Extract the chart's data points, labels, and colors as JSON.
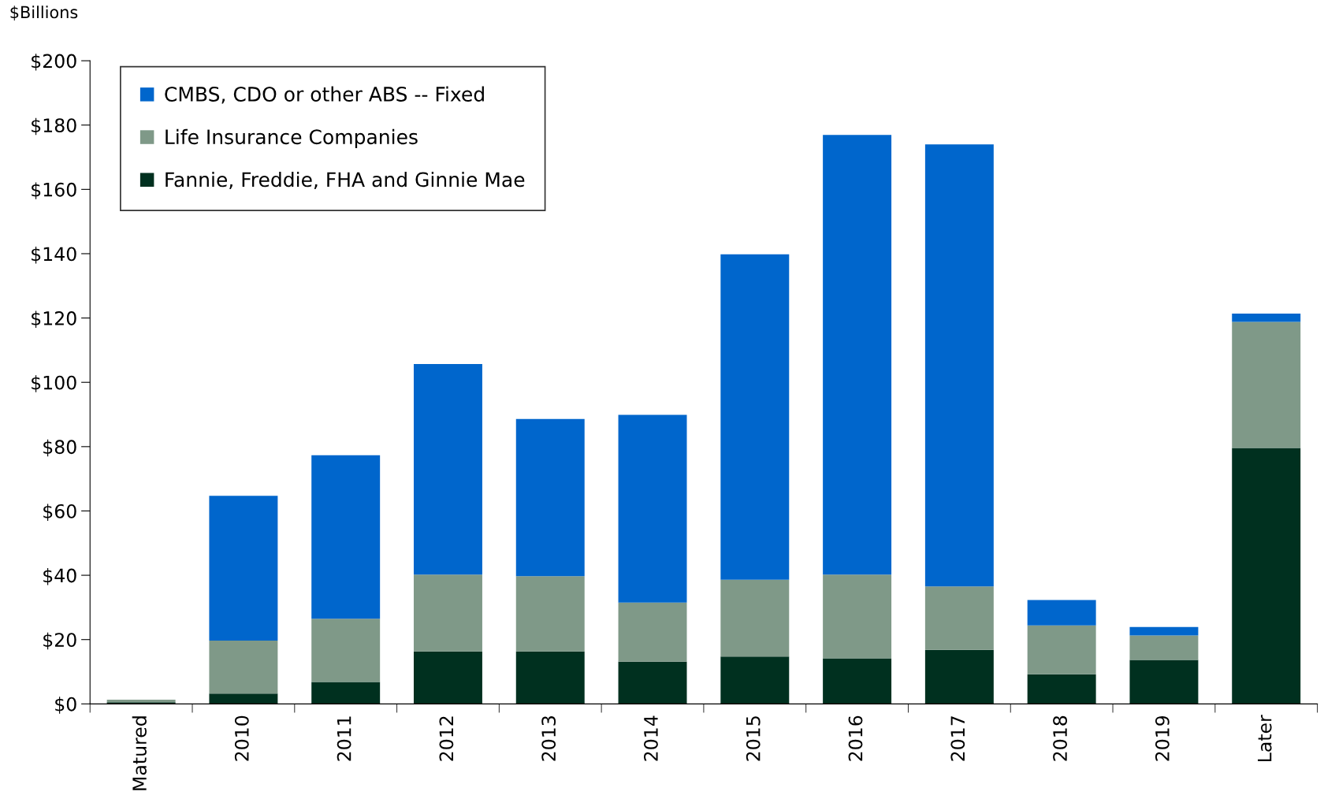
{
  "chart_data": {
    "type": "bar",
    "stacked": true,
    "ylabel": "$Billions",
    "categories": [
      "Matured",
      "2010",
      "2011",
      "2012",
      "2013",
      "2014",
      "2015",
      "2016",
      "2017",
      "2018",
      "2019",
      "Later"
    ],
    "series": [
      {
        "name": "Fannie, Freddie, FHA and Ginnie Mae",
        "color": "#00301f",
        "values": [
          0.5,
          3.2,
          6.8,
          16.3,
          16.3,
          13.1,
          14.7,
          14.2,
          16.8,
          9.2,
          13.7,
          79.6
        ]
      },
      {
        "name": "Life Insurance Companies",
        "color": "#7f9988",
        "values": [
          0.8,
          16.5,
          19.7,
          23.9,
          23.4,
          18.4,
          23.9,
          26.0,
          19.7,
          15.2,
          7.6,
          39.2
        ]
      },
      {
        "name": "CMBS, CDO or other ABS -- Fixed",
        "color": "#0066cc",
        "values": [
          0,
          45.0,
          50.8,
          65.5,
          48.9,
          58.4,
          101.2,
          136.7,
          137.5,
          7.9,
          2.6,
          2.6
        ]
      }
    ],
    "ylim": [
      0,
      200
    ],
    "yticks": [
      {
        "value": 0,
        "label": "$0"
      },
      {
        "value": 20,
        "label": "$20"
      },
      {
        "value": 40,
        "label": "$40"
      },
      {
        "value": 60,
        "label": "$60"
      },
      {
        "value": 80,
        "label": "$80"
      },
      {
        "value": 100,
        "label": "$100"
      },
      {
        "value": 120,
        "label": "$120"
      },
      {
        "value": 140,
        "label": "$140"
      },
      {
        "value": 160,
        "label": "$160"
      },
      {
        "value": 180,
        "label": "$180"
      },
      {
        "value": 200,
        "label": "$200"
      }
    ],
    "grid": false,
    "legend": "top left"
  }
}
